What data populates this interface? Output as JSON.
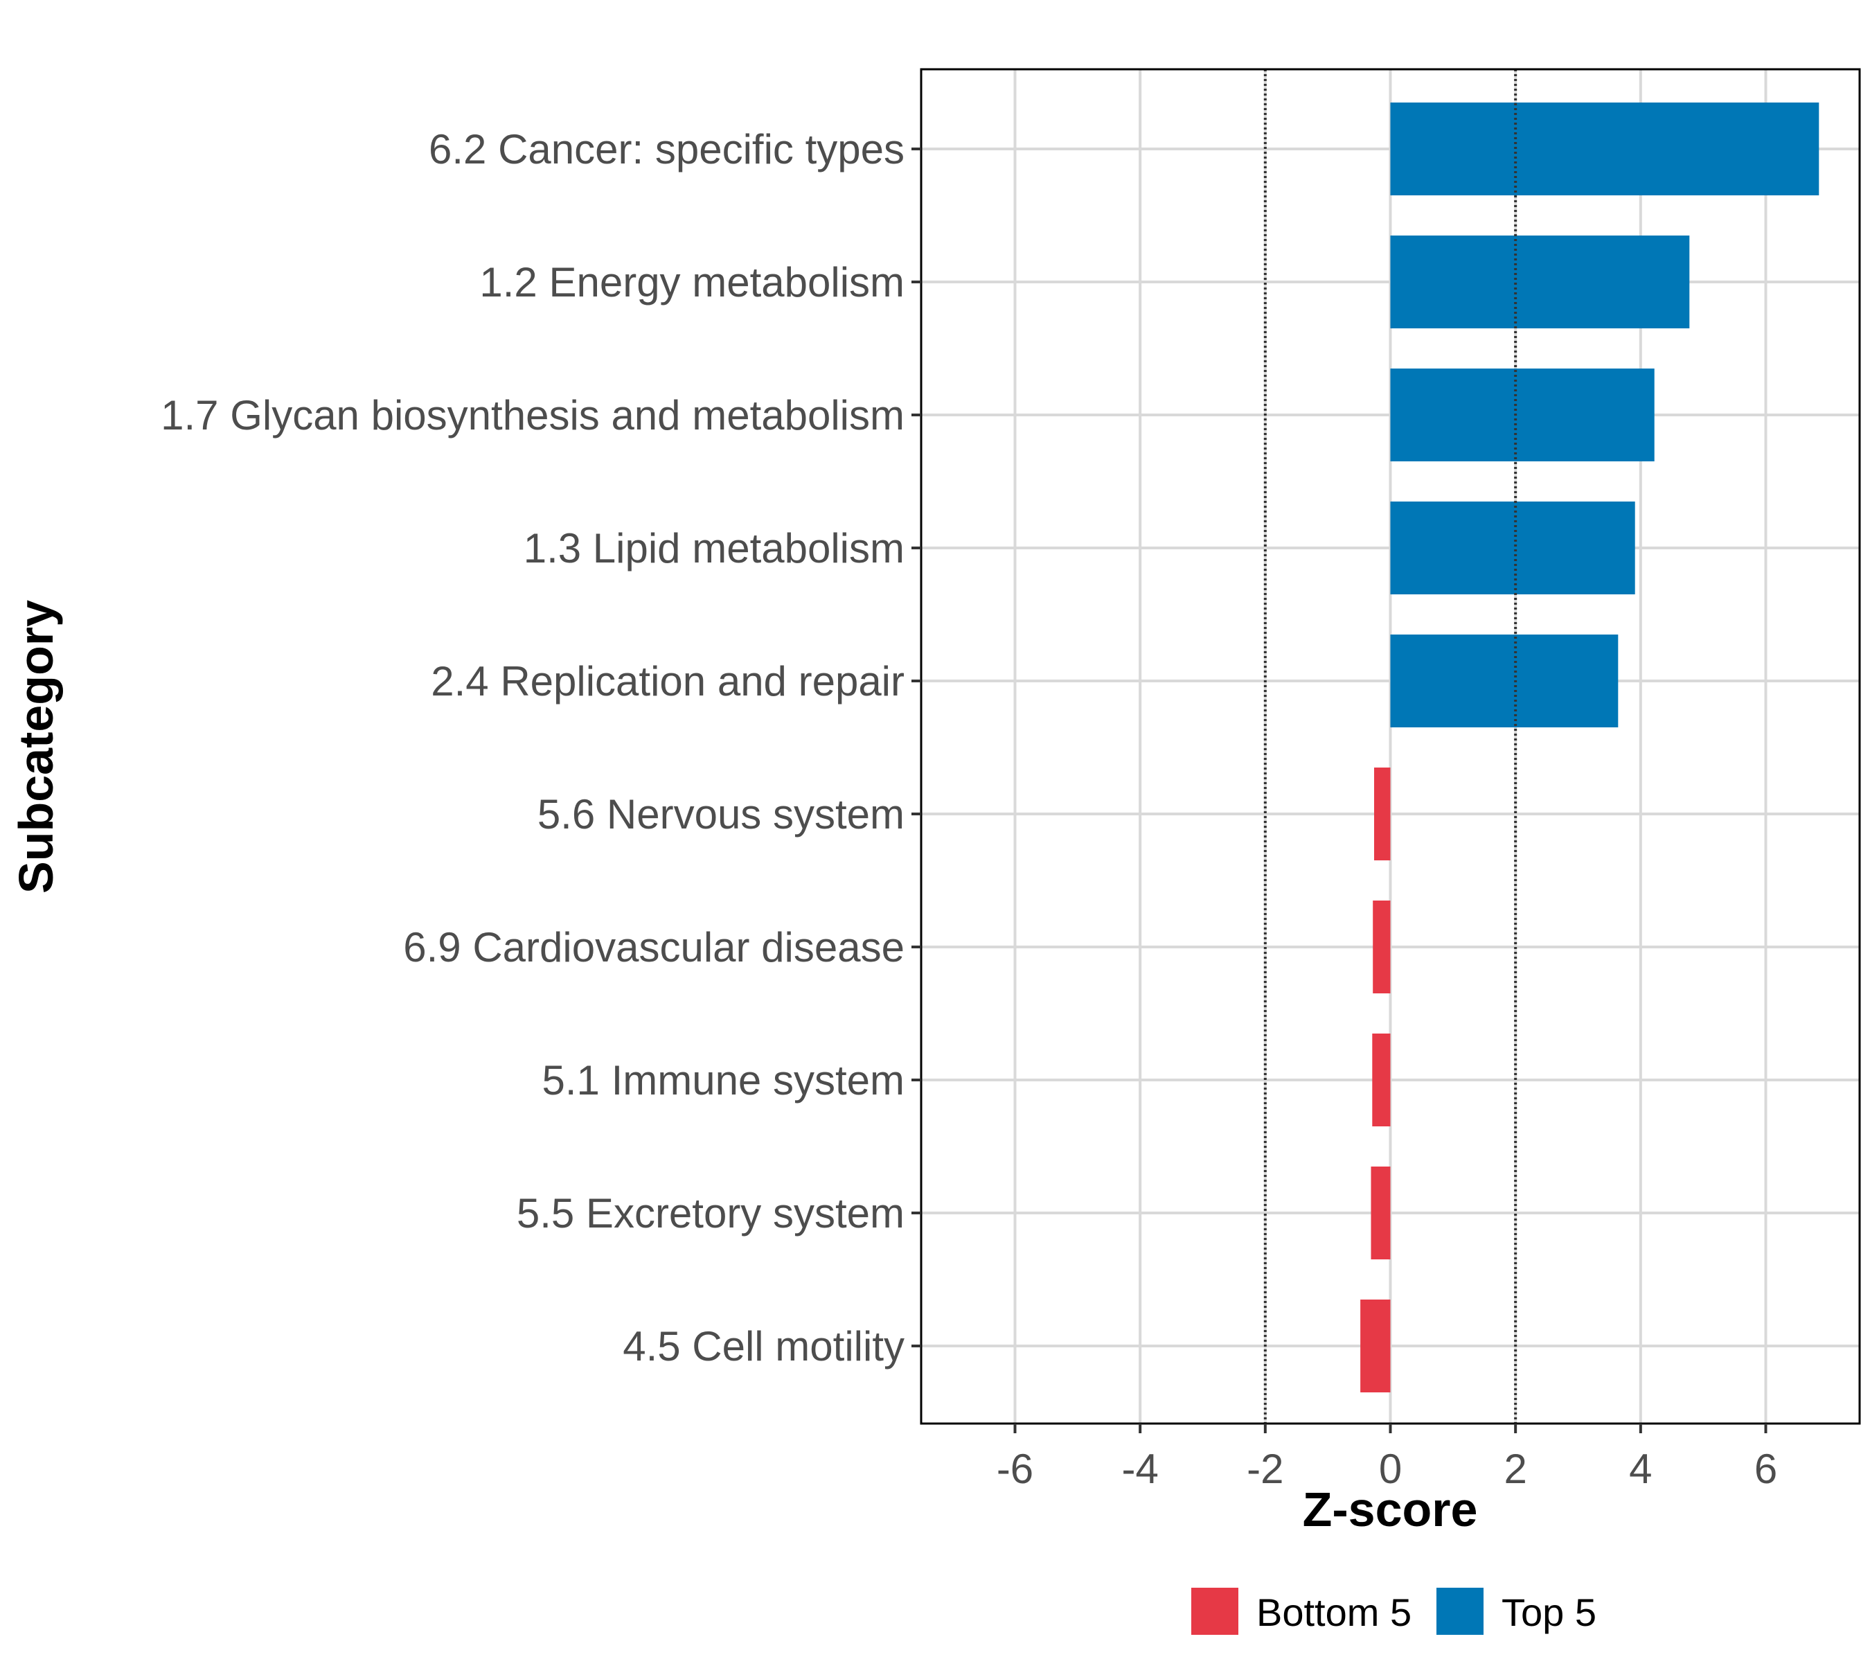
{
  "chart_data": {
    "type": "bar",
    "orientation": "horizontal",
    "xlabel": "Z-score",
    "ylabel": "Subcategory",
    "xlim": [
      -7.5,
      7.5
    ],
    "x_ticks": [
      "-6",
      "-4",
      "-2",
      "0",
      "2",
      "4",
      "6"
    ],
    "x_tick_values": [
      -6,
      -4,
      -2,
      0,
      2,
      4,
      6
    ],
    "reference_lines": [
      -2,
      2
    ],
    "grid": true,
    "legend_position": "bottom",
    "categories": [
      "6.2 Cancer: specific types",
      "1.2 Energy metabolism",
      "1.7 Glycan biosynthesis and metabolism",
      "1.3 Lipid metabolism",
      "2.4 Replication and repair",
      "5.6 Nervous system",
      "6.9 Cardiovascular disease",
      "5.1 Immune system",
      "5.5 Excretory system",
      "4.5 Cell motility"
    ],
    "values": [
      6.85,
      4.78,
      4.22,
      3.91,
      3.64,
      -0.26,
      -0.28,
      -0.29,
      -0.31,
      -0.48
    ],
    "groups": [
      "Top 5",
      "Top 5",
      "Top 5",
      "Top 5",
      "Top 5",
      "Bottom 5",
      "Bottom 5",
      "Bottom 5",
      "Bottom 5",
      "Bottom 5"
    ],
    "series": [
      {
        "name": "Bottom 5",
        "color": "#e63946"
      },
      {
        "name": "Top 5",
        "color": "#0077b6"
      }
    ]
  }
}
